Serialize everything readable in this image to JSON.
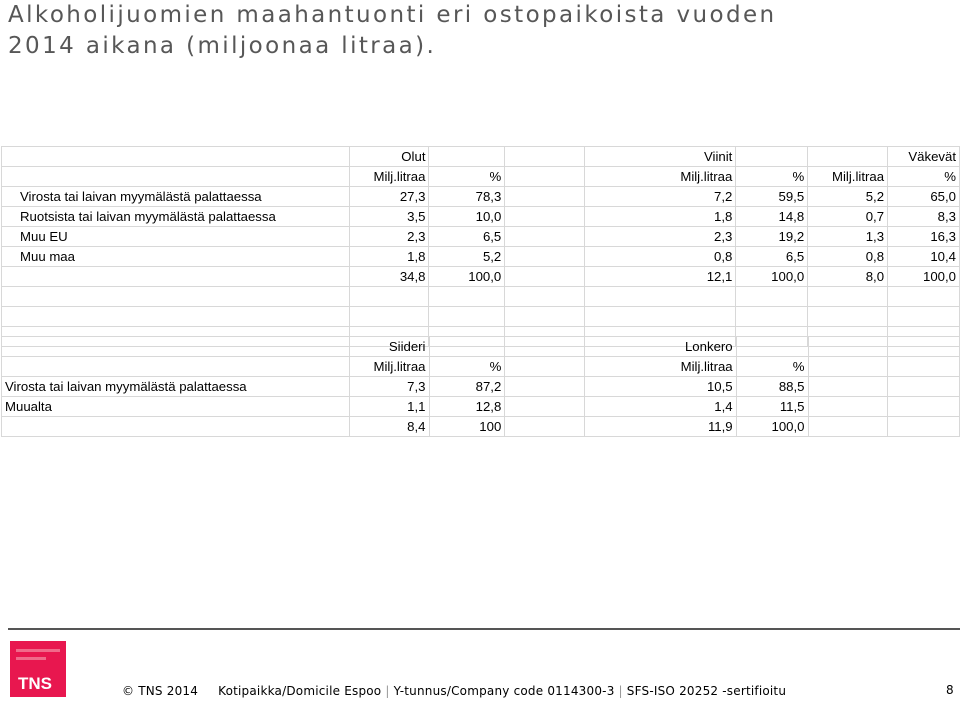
{
  "title": {
    "line1": "Alkoholijuomien maahantuonti eri ostopaikoista vuoden",
    "line2": "2014 aikana (miljoonaa litraa)."
  },
  "table1": {
    "groups": [
      "Olut",
      "Viinit",
      "Väkevät"
    ],
    "unit_headers": [
      "Milj.litraa",
      "%",
      "Milj.litraa",
      "%",
      "Milj.litraa",
      "%"
    ],
    "rows": [
      {
        "label": "Virosta tai laivan myymälästä palattaessa",
        "values": [
          "27,3",
          "78,3",
          "7,2",
          "59,5",
          "5,2",
          "65,0"
        ]
      },
      {
        "label": "Ruotsista tai laivan myymälästä palattaessa",
        "values": [
          "3,5",
          "10,0",
          "1,8",
          "14,8",
          "0,7",
          "8,3"
        ]
      },
      {
        "label": "Muu EU",
        "values": [
          "2,3",
          "6,5",
          "2,3",
          "19,2",
          "1,3",
          "16,3"
        ]
      },
      {
        "label": "Muu maa",
        "values": [
          "1,8",
          "5,2",
          "0,8",
          "6,5",
          "0,8",
          "10,4"
        ]
      },
      {
        "label": "",
        "values": [
          "34,8",
          "100,0",
          "12,1",
          "100,0",
          "8,0",
          "100,0"
        ]
      }
    ]
  },
  "table2": {
    "groups": [
      "Siideri",
      "Lonkero"
    ],
    "unit_headers": [
      "Milj.litraa",
      "%",
      "Milj.litraa",
      "%"
    ],
    "rows": [
      {
        "label": "Virosta tai laivan myymälästä palattaessa",
        "values": [
          "7,3",
          "87,2",
          "10,5",
          "88,5"
        ]
      },
      {
        "label": "Muualta",
        "values": [
          "1,1",
          "12,8",
          "1,4",
          "11,5"
        ]
      },
      {
        "label": "",
        "values": [
          "8,4",
          "100",
          "11,9",
          "100,0"
        ]
      }
    ]
  },
  "footer": {
    "logo": "TNS",
    "copyright": "© TNS 2014",
    "location": "Kotipaikka/Domicile Espoo",
    "business_id": "Y-tunnus/Company code 0114300-3",
    "certification": "SFS-ISO 20252 -sertifioitu",
    "page": "8"
  },
  "colors": {
    "logo_bg": "#e8174f",
    "title": "#575757"
  }
}
